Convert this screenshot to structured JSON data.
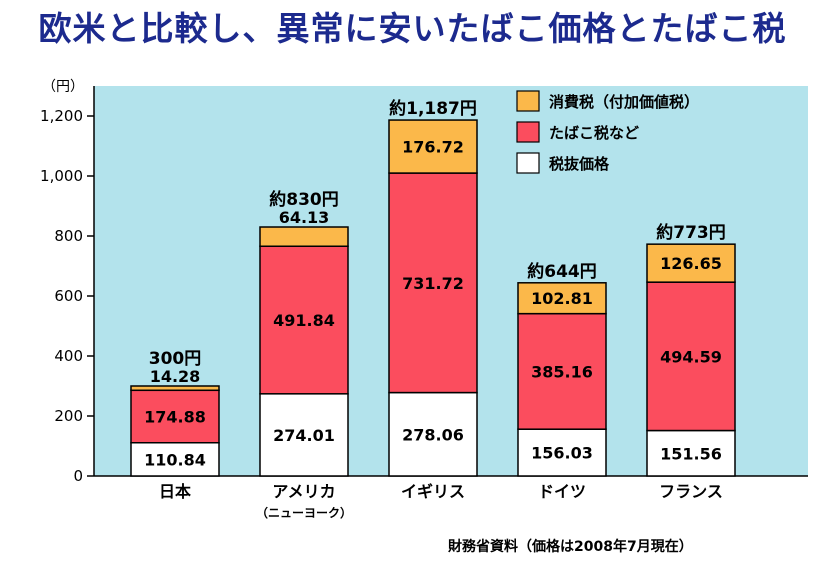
{
  "title": "欧米と比較し、異常に安いたばこ価格とたばこ税",
  "source": "財務省資料（価格は2008年7月現在）",
  "colors": {
    "title": "#1c2a8e",
    "plot_bg": "#b3e3ec",
    "consumption_tax": "#fbb84a",
    "tobacco_tax": "#fb4d5e",
    "base_price": "#ffffff"
  },
  "chart_data": {
    "type": "bar",
    "stacked": true,
    "unit_label": "（円）",
    "categories": [
      "日本",
      "アメリカ",
      "イギリス",
      "ドイツ",
      "フランス"
    ],
    "category_sublabels": [
      "",
      "（ニューヨーク）",
      "",
      "",
      ""
    ],
    "series": [
      {
        "name": "税抜価格",
        "color": "#ffffff",
        "values": [
          110.84,
          274.01,
          278.06,
          156.03,
          151.56
        ],
        "labels": [
          "110.84",
          "274.01",
          "278.06",
          "156.03",
          "151.56"
        ]
      },
      {
        "name": "たばこ税など",
        "color": "#fb4d5e",
        "values": [
          174.88,
          491.84,
          731.72,
          385.16,
          494.59
        ],
        "labels": [
          "174.88",
          "491.84",
          "731.72",
          "385.16",
          "494.59"
        ]
      },
      {
        "name": "消費税（付加価値税）",
        "color": "#fbb84a",
        "values": [
          14.28,
          64.13,
          176.72,
          102.81,
          126.65
        ],
        "labels": [
          "14.28",
          "64.13",
          "176.72",
          "102.81",
          "126.65"
        ]
      }
    ],
    "totals": [
      "300円",
      "約830円",
      "約1,187円",
      "約644円",
      "約773円"
    ],
    "legend_order": [
      "消費税（付加価値税）",
      "たばこ税など",
      "税抜価格"
    ],
    "ylim": [
      0,
      1300
    ],
    "yticks": [
      0,
      200,
      400,
      600,
      800,
      1000,
      1200
    ],
    "ytick_labels": [
      "0",
      "200",
      "400",
      "600",
      "800",
      "1,000",
      "1,200"
    ],
    "grid": false,
    "legend_position": "top-right"
  }
}
